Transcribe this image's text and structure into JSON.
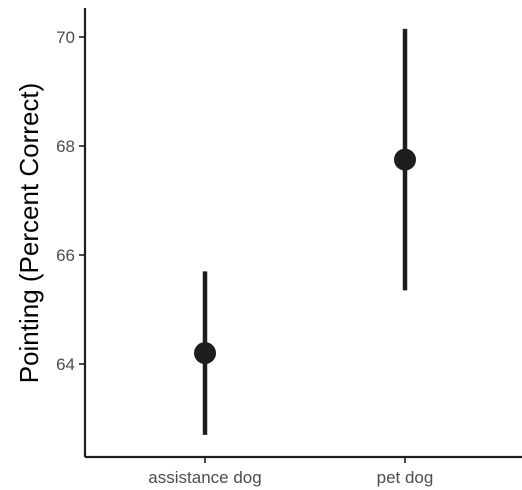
{
  "chart_data": {
    "type": "pointrange",
    "title": "",
    "xlabel": "",
    "ylabel": "Pointing (Percent Correct)",
    "ylim": [
      62.5,
      70.5
    ],
    "yticks": [
      64,
      66,
      68,
      70
    ],
    "categories": [
      "assistance dog",
      "pet dog"
    ],
    "points": [
      {
        "category": "assistance dog",
        "y": 64.2,
        "ymin": 62.7,
        "ymax": 65.7
      },
      {
        "category": "pet dog",
        "y": 67.75,
        "ymin": 65.35,
        "ymax": 70.15
      }
    ],
    "grid": false,
    "colors": {
      "mark": "#1e1e1e",
      "axis": "#1e1e1e",
      "tick_label": "#4d4d4d",
      "axis_title": "#000000"
    }
  }
}
